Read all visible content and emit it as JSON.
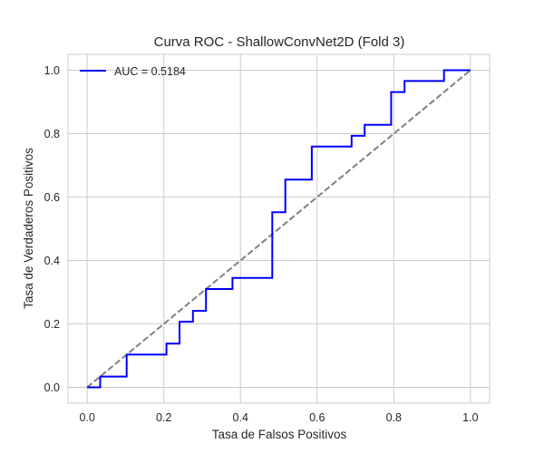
{
  "chart_data": {
    "type": "line",
    "title": "Curva ROC - ShallowConvNet2D (Fold 3)",
    "xlabel": "Tasa de Falsos Positivos",
    "ylabel": "Tasa de Verdaderos Positivos",
    "xlim": [
      -0.05,
      1.05
    ],
    "ylim": [
      -0.05,
      1.05
    ],
    "xticks": [
      "0.0",
      "0.2",
      "0.4",
      "0.6",
      "0.8",
      "1.0"
    ],
    "yticks": [
      "0.0",
      "0.2",
      "0.4",
      "0.6",
      "0.8",
      "1.0"
    ],
    "grid": true,
    "legend_position": "top-left",
    "series": [
      {
        "name": "AUC = 0.5184",
        "color": "#0000ff",
        "style": "solid",
        "x": [
          0.0,
          0.034,
          0.034,
          0.103,
          0.103,
          0.207,
          0.207,
          0.241,
          0.241,
          0.276,
          0.276,
          0.31,
          0.31,
          0.379,
          0.379,
          0.483,
          0.483,
          0.517,
          0.517,
          0.586,
          0.586,
          0.69,
          0.69,
          0.724,
          0.724,
          0.793,
          0.793,
          0.828,
          0.828,
          0.931,
          0.931,
          1.0
        ],
        "y": [
          0.0,
          0.0,
          0.034,
          0.034,
          0.103,
          0.103,
          0.138,
          0.138,
          0.207,
          0.207,
          0.241,
          0.241,
          0.31,
          0.31,
          0.345,
          0.345,
          0.552,
          0.552,
          0.655,
          0.655,
          0.759,
          0.759,
          0.793,
          0.793,
          0.828,
          0.828,
          0.931,
          0.931,
          0.966,
          0.966,
          1.0,
          1.0
        ]
      },
      {
        "color": "#808080",
        "style": "dashed",
        "x": [
          0.0,
          1.0
        ],
        "y": [
          0.0,
          1.0
        ]
      }
    ]
  }
}
